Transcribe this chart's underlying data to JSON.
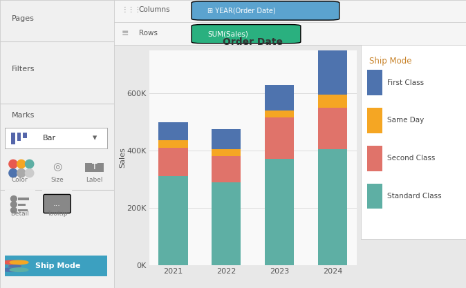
{
  "years": [
    2021,
    2022,
    2023,
    2024
  ],
  "standard_class": [
    310000,
    290000,
    370000,
    405000
  ],
  "second_class": [
    100000,
    90000,
    145000,
    145000
  ],
  "same_day": [
    25000,
    25000,
    25000,
    45000
  ],
  "first_class": [
    65000,
    70000,
    90000,
    205000
  ],
  "colors": {
    "Standard Class": "#5eafa4",
    "Second Class": "#e0736a",
    "Same Day": "#f5a623",
    "First Class": "#4e73ae"
  },
  "title": "Order Date",
  "ylabel": "Sales",
  "ylim_max": 750000,
  "yticks": [
    0,
    200000,
    400000,
    600000
  ],
  "ytick_labels": [
    "0K",
    "200K",
    "400K",
    "600K"
  ],
  "bg_chart": "#ffffff",
  "bg_outer": "#e8e8e8",
  "bg_left_panel": "#f0f0f0",
  "bg_top_panel": "#f5f5f5",
  "bg_chart_area": "#f9f9f9",
  "legend_title": "Ship Mode",
  "legend_title_color": "#c8832a",
  "legend_items": [
    "First Class",
    "Same Day",
    "Second Class",
    "Standard Class"
  ],
  "legend_colors": [
    "#4e73ae",
    "#f5a623",
    "#e0736a",
    "#5eafa4"
  ],
  "title_fontsize": 10,
  "axis_fontsize": 8,
  "tick_fontsize": 8,
  "bar_width": 0.55,
  "col_pill_color": "#5ba3cf",
  "row_pill_color": "#2ab07f",
  "ship_btn_color": "#3ca0c0"
}
